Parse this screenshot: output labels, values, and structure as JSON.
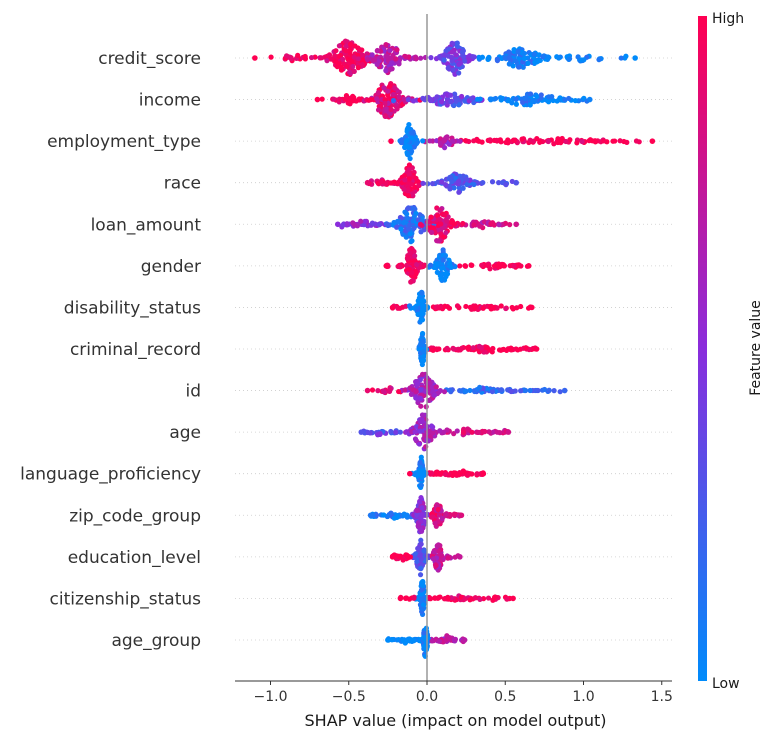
{
  "chart_data": {
    "type": "scatter",
    "subtype": "shap-beeswarm",
    "title": "",
    "xlabel": "SHAP value (impact on model output)",
    "ylabel": "",
    "xlim": [
      -1.23,
      1.57
    ],
    "x_ticks": [
      -1.0,
      -0.5,
      0.0,
      0.5,
      1.0,
      1.5
    ],
    "x_tick_labels": [
      "−1.0",
      "−0.5",
      "0.0",
      "0.5",
      "1.0",
      "1.5"
    ],
    "grid": false,
    "zero_line": true,
    "colorbar": {
      "label": "Feature value",
      "high_label": "High",
      "low_label": "Low",
      "high_color": "#ff0052",
      "mid_color": "#8a2ddc",
      "low_color": "#008bfb",
      "placement": "right"
    },
    "features": [
      {
        "name": "credit_score",
        "min": -1.1,
        "max": 1.33,
        "clusters": [
          {
            "center": -0.5,
            "spread": 0.16,
            "height": 1.0,
            "value": 0.95
          },
          {
            "center": -0.25,
            "spread": 0.13,
            "height": 0.8,
            "value": 0.7
          },
          {
            "center": 0.18,
            "spread": 0.1,
            "height": 0.95,
            "value": 0.4
          },
          {
            "center": 0.6,
            "spread": 0.2,
            "height": 0.5,
            "value": 0.05
          },
          {
            "center": -0.85,
            "spread": 0.15,
            "height": 0.12,
            "value": 1.0
          },
          {
            "center": 1.0,
            "spread": 0.2,
            "height": 0.12,
            "value": 0.0
          }
        ]
      },
      {
        "name": "income",
        "min": -0.7,
        "max": 1.04,
        "clusters": [
          {
            "center": -0.25,
            "spread": 0.13,
            "height": 1.0,
            "value": 0.85
          },
          {
            "center": -0.5,
            "spread": 0.12,
            "height": 0.2,
            "value": 1.0
          },
          {
            "center": 0.15,
            "spread": 0.25,
            "height": 0.3,
            "value": 0.35
          },
          {
            "center": 0.65,
            "spread": 0.25,
            "height": 0.3,
            "value": 0.05
          }
        ]
      },
      {
        "name": "employment_type",
        "min": -0.23,
        "max": 1.44,
        "clusters": [
          {
            "center": -0.11,
            "spread": 0.05,
            "height": 1.0,
            "value": 0.0
          },
          {
            "center": 0.12,
            "spread": 0.08,
            "height": 0.35,
            "value": 0.65
          },
          {
            "center": 0.75,
            "spread": 0.45,
            "height": 0.12,
            "value": 1.0
          }
        ]
      },
      {
        "name": "race",
        "min": -0.38,
        "max": 0.57,
        "clusters": [
          {
            "center": -0.11,
            "spread": 0.07,
            "height": 1.0,
            "value": 1.0
          },
          {
            "center": 0.2,
            "spread": 0.12,
            "height": 0.55,
            "value": 0.3
          },
          {
            "center": -0.28,
            "spread": 0.06,
            "height": 0.12,
            "value": 0.9
          }
        ]
      },
      {
        "name": "loan_amount",
        "min": -0.57,
        "max": 0.57,
        "clusters": [
          {
            "center": -0.1,
            "spread": 0.12,
            "height": 1.0,
            "value": 0.15
          },
          {
            "center": 0.08,
            "spread": 0.1,
            "height": 1.0,
            "value": 0.9
          },
          {
            "center": -0.4,
            "spread": 0.1,
            "height": 0.15,
            "value": 0.5
          },
          {
            "center": 0.35,
            "spread": 0.1,
            "height": 0.15,
            "value": 0.8
          }
        ]
      },
      {
        "name": "gender",
        "min": -0.26,
        "max": 0.65,
        "clusters": [
          {
            "center": -0.1,
            "spread": 0.06,
            "height": 1.0,
            "value": 1.0
          },
          {
            "center": 0.1,
            "spread": 0.06,
            "height": 1.0,
            "value": 0.0
          },
          {
            "center": 0.4,
            "spread": 0.15,
            "height": 0.12,
            "value": 1.0
          }
        ]
      },
      {
        "name": "disability_status",
        "min": -0.22,
        "max": 0.67,
        "clusters": [
          {
            "center": -0.04,
            "spread": 0.03,
            "height": 1.0,
            "value": 0.0
          },
          {
            "center": 0.35,
            "spread": 0.18,
            "height": 0.12,
            "value": 1.0
          }
        ]
      },
      {
        "name": "criminal_record",
        "min": -0.05,
        "max": 0.7,
        "clusters": [
          {
            "center": -0.03,
            "spread": 0.02,
            "height": 1.0,
            "value": 0.0
          },
          {
            "center": 0.38,
            "spread": 0.18,
            "height": 0.13,
            "value": 1.0
          }
        ]
      },
      {
        "name": "id",
        "min": -0.38,
        "max": 0.88,
        "clusters": [
          {
            "center": -0.02,
            "spread": 0.1,
            "height": 1.0,
            "value": 0.6
          },
          {
            "center": 0.35,
            "spread": 0.2,
            "height": 0.15,
            "value": 0.2
          },
          {
            "center": -0.25,
            "spread": 0.08,
            "height": 0.13,
            "value": 0.9
          }
        ]
      },
      {
        "name": "age",
        "min": -0.42,
        "max": 0.52,
        "clusters": [
          {
            "center": -0.02,
            "spread": 0.09,
            "height": 1.0,
            "value": 0.6
          },
          {
            "center": -0.3,
            "spread": 0.08,
            "height": 0.13,
            "value": 0.3
          },
          {
            "center": 0.25,
            "spread": 0.12,
            "height": 0.14,
            "value": 0.8
          }
        ]
      },
      {
        "name": "language_proficiency",
        "min": -0.11,
        "max": 0.36,
        "clusters": [
          {
            "center": -0.04,
            "spread": 0.02,
            "height": 1.0,
            "value": 0.0
          },
          {
            "center": 0.2,
            "spread": 0.1,
            "height": 0.14,
            "value": 1.0
          }
        ]
      },
      {
        "name": "zip_code_group",
        "min": -0.36,
        "max": 0.22,
        "clusters": [
          {
            "center": -0.04,
            "spread": 0.04,
            "height": 1.0,
            "value": 0.5
          },
          {
            "center": 0.07,
            "spread": 0.04,
            "height": 0.75,
            "value": 0.85
          },
          {
            "center": -0.22,
            "spread": 0.08,
            "height": 0.13,
            "value": 0.1
          }
        ]
      },
      {
        "name": "education_level",
        "min": -0.22,
        "max": 0.21,
        "clusters": [
          {
            "center": -0.04,
            "spread": 0.04,
            "height": 1.0,
            "value": 0.3
          },
          {
            "center": 0.07,
            "spread": 0.04,
            "height": 0.8,
            "value": 0.75
          },
          {
            "center": -0.15,
            "spread": 0.05,
            "height": 0.14,
            "value": 1.0
          }
        ]
      },
      {
        "name": "citizenship_status",
        "min": -0.17,
        "max": 0.55,
        "clusters": [
          {
            "center": -0.03,
            "spread": 0.02,
            "height": 1.0,
            "value": 0.0
          },
          {
            "center": 0.25,
            "spread": 0.14,
            "height": 0.14,
            "value": 1.0
          }
        ]
      },
      {
        "name": "age_group",
        "min": -0.25,
        "max": 0.24,
        "clusters": [
          {
            "center": -0.01,
            "spread": 0.02,
            "height": 1.0,
            "value": 0.0
          },
          {
            "center": 0.12,
            "spread": 0.07,
            "height": 0.2,
            "value": 0.7
          },
          {
            "center": -0.15,
            "spread": 0.07,
            "height": 0.13,
            "value": 0.0
          }
        ]
      }
    ]
  }
}
